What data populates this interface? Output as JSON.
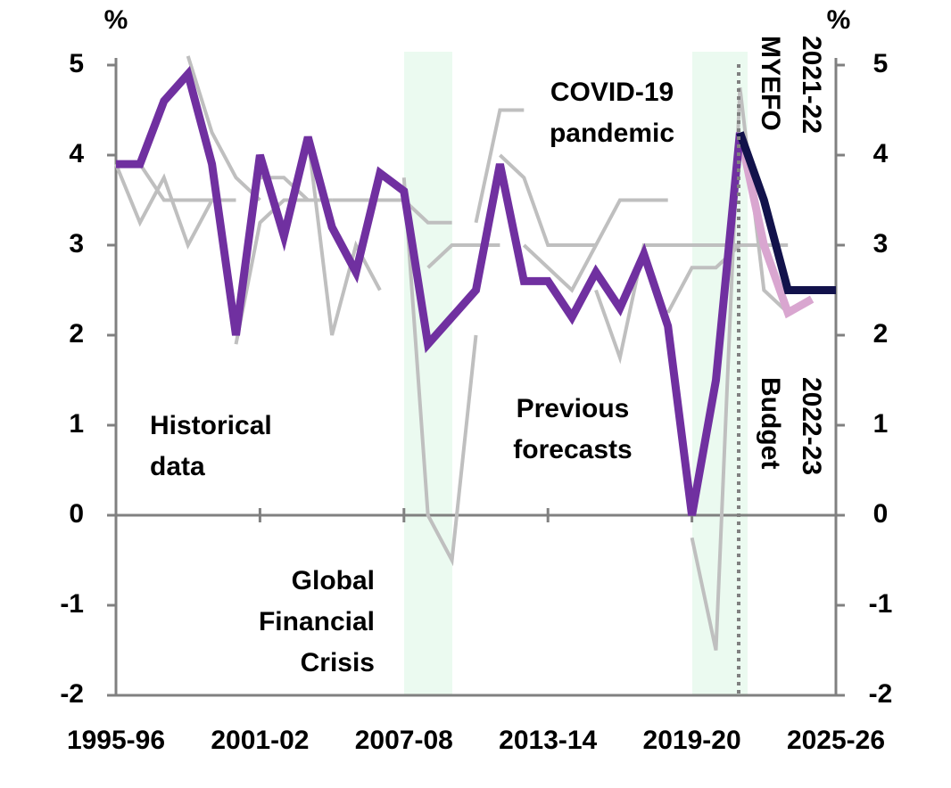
{
  "chart_data": {
    "type": "line",
    "y_unit": "%",
    "y2_unit": "%",
    "categories": [
      "1995-96",
      null,
      null,
      null,
      null,
      null,
      "2001-02",
      null,
      null,
      null,
      null,
      null,
      "2007-08",
      null,
      null,
      null,
      null,
      null,
      "2013-14",
      null,
      null,
      null,
      null,
      null,
      "2019-20",
      null,
      null,
      null,
      null,
      null,
      "2025-26"
    ],
    "ylim": [
      -2,
      5
    ],
    "yticks": [
      5,
      4,
      3,
      2,
      1,
      0,
      -1,
      -2
    ],
    "y2lim": [
      -2,
      5
    ],
    "y2ticks": [
      5,
      4,
      3,
      2,
      1,
      0,
      -1,
      -2
    ],
    "series": [
      {
        "color": "#bfbfbf",
        "values": [
          3.9,
          3.25,
          3.75,
          3.0,
          3.5,
          null,
          null,
          null,
          null,
          null,
          null,
          null,
          null,
          null,
          null,
          null,
          null,
          null,
          null,
          null,
          null,
          null,
          null,
          null,
          null,
          null,
          null,
          null,
          null,
          null,
          null
        ]
      },
      {
        "color": "#bfbfbf",
        "values": [
          null,
          3.9,
          3.5,
          3.5,
          3.5,
          3.5,
          null,
          null,
          null,
          null,
          null,
          null,
          null,
          null,
          null,
          null,
          null,
          null,
          null,
          null,
          null,
          null,
          null,
          null,
          null,
          null,
          null,
          null,
          null,
          null,
          null
        ]
      },
      {
        "color": "#bfbfbf",
        "values": [
          null,
          null,
          null,
          5.1,
          4.25,
          3.75,
          3.5,
          null,
          null,
          null,
          null,
          null,
          null,
          null,
          null,
          null,
          null,
          null,
          null,
          null,
          null,
          null,
          null,
          null,
          null,
          null,
          null,
          null,
          null,
          null,
          null
        ]
      },
      {
        "color": "#bfbfbf",
        "values": [
          null,
          null,
          null,
          null,
          null,
          1.9,
          3.25,
          3.5,
          3.5,
          null,
          null,
          null,
          null,
          null,
          null,
          null,
          null,
          null,
          null,
          null,
          null,
          null,
          null,
          null,
          null,
          null,
          null,
          null,
          null,
          null,
          null
        ]
      },
      {
        "color": "#bfbfbf",
        "values": [
          null,
          null,
          null,
          null,
          null,
          null,
          3.75,
          3.75,
          3.5,
          3.5,
          null,
          null,
          null,
          null,
          null,
          null,
          null,
          null,
          null,
          null,
          null,
          null,
          null,
          null,
          null,
          null,
          null,
          null,
          null,
          null,
          null
        ]
      },
      {
        "color": "#bfbfbf",
        "values": [
          null,
          null,
          null,
          null,
          null,
          null,
          null,
          null,
          4.2,
          2.0,
          3.0,
          2.5,
          null,
          null,
          null,
          null,
          null,
          null,
          null,
          null,
          null,
          null,
          null,
          null,
          null,
          null,
          null,
          null,
          null,
          null,
          null
        ]
      },
      {
        "color": "#bfbfbf",
        "values": [
          null,
          null,
          null,
          null,
          null,
          null,
          null,
          null,
          null,
          3.5,
          3.5,
          3.5,
          3.5,
          null,
          null,
          null,
          null,
          null,
          null,
          null,
          null,
          null,
          null,
          null,
          null,
          null,
          null,
          null,
          null,
          null,
          null
        ]
      },
      {
        "color": "#bfbfbf",
        "values": [
          null,
          null,
          null,
          null,
          null,
          null,
          null,
          null,
          null,
          null,
          null,
          null,
          3.75,
          0.0,
          -0.5,
          2.0,
          null,
          null,
          null,
          null,
          null,
          null,
          null,
          null,
          null,
          null,
          null,
          null,
          null,
          null,
          null
        ]
      },
      {
        "color": "#bfbfbf",
        "values": [
          null,
          null,
          null,
          null,
          null,
          null,
          null,
          null,
          null,
          null,
          null,
          null,
          3.5,
          3.25,
          3.25,
          null,
          null,
          null,
          null,
          null,
          null,
          null,
          null,
          null,
          null,
          null,
          null,
          null,
          null,
          null,
          null
        ]
      },
      {
        "color": "#bfbfbf",
        "values": [
          null,
          null,
          null,
          null,
          null,
          null,
          null,
          null,
          null,
          null,
          null,
          null,
          null,
          2.75,
          3.0,
          3.0,
          3.0,
          null,
          null,
          null,
          null,
          null,
          null,
          null,
          null,
          null,
          null,
          null,
          null,
          null,
          null
        ]
      },
      {
        "color": "#bfbfbf",
        "values": [
          null,
          null,
          null,
          null,
          null,
          null,
          null,
          null,
          null,
          null,
          null,
          null,
          null,
          null,
          null,
          3.25,
          4.5,
          4.5,
          null,
          null,
          null,
          null,
          null,
          null,
          null,
          null,
          null,
          null,
          null,
          null,
          null
        ]
      },
      {
        "color": "#bfbfbf",
        "values": [
          null,
          null,
          null,
          null,
          null,
          null,
          null,
          null,
          null,
          null,
          null,
          null,
          null,
          null,
          null,
          null,
          4.0,
          3.75,
          3.0,
          3.0,
          3.0,
          null,
          null,
          null,
          null,
          null,
          null,
          null,
          null,
          null,
          null
        ]
      },
      {
        "color": "#bfbfbf",
        "values": [
          null,
          null,
          null,
          null,
          null,
          null,
          null,
          null,
          null,
          null,
          null,
          null,
          null,
          null,
          null,
          null,
          null,
          3.0,
          2.75,
          2.5,
          3.0,
          3.5,
          3.5,
          3.5,
          null,
          null,
          null,
          null,
          null,
          null,
          null
        ]
      },
      {
        "color": "#bfbfbf",
        "values": [
          null,
          null,
          null,
          null,
          null,
          null,
          null,
          null,
          null,
          null,
          null,
          null,
          null,
          null,
          null,
          null,
          null,
          null,
          null,
          null,
          2.5,
          1.75,
          3.0,
          3.0,
          3.0,
          3.0,
          3.0,
          null,
          null,
          null,
          null
        ]
      },
      {
        "color": "#bfbfbf",
        "values": [
          null,
          null,
          null,
          null,
          null,
          null,
          null,
          null,
          null,
          null,
          null,
          null,
          null,
          null,
          null,
          null,
          null,
          null,
          null,
          null,
          null,
          null,
          null,
          2.25,
          2.75,
          2.75,
          3.0,
          3.0,
          3.0,
          null,
          null
        ]
      },
      {
        "color": "#bfbfbf",
        "values": [
          null,
          null,
          null,
          null,
          null,
          null,
          null,
          null,
          null,
          null,
          null,
          null,
          null,
          null,
          null,
          null,
          null,
          null,
          null,
          null,
          null,
          null,
          null,
          null,
          -0.25,
          -1.5,
          4.75,
          2.5,
          2.25,
          null,
          null
        ]
      },
      {
        "color": "#d9a6d0",
        "values": [
          null,
          null,
          null,
          null,
          null,
          null,
          null,
          null,
          null,
          null,
          null,
          null,
          null,
          null,
          null,
          null,
          null,
          null,
          null,
          null,
          null,
          null,
          null,
          null,
          null,
          null,
          4.25,
          3.0,
          2.25,
          2.4,
          null
        ]
      },
      {
        "color": "#7030a0",
        "values": [
          3.9,
          3.9,
          4.6,
          4.9,
          3.9,
          2.0,
          4.0,
          3.1,
          4.2,
          3.2,
          2.7,
          3.8,
          3.6,
          1.9,
          2.2,
          2.5,
          3.9,
          2.6,
          2.6,
          2.2,
          2.7,
          2.3,
          2.9,
          2.1,
          0.0,
          1.5,
          4.25,
          null,
          null,
          null,
          null
        ]
      },
      {
        "color": "#12124b",
        "values": [
          null,
          null,
          null,
          null,
          null,
          null,
          null,
          null,
          null,
          null,
          null,
          null,
          null,
          null,
          null,
          null,
          null,
          null,
          null,
          null,
          null,
          null,
          null,
          null,
          null,
          null,
          4.25,
          3.5,
          2.5,
          2.5,
          2.5
        ]
      }
    ],
    "annotations": [
      {
        "lines": [
          "COVID-19",
          "pandemic"
        ],
        "color": "#2dbd8a"
      },
      {
        "lines": [
          "Global",
          "Financial",
          "Crisis"
        ],
        "color": "#2dbd8a"
      },
      {
        "lines": [
          "Historical",
          "data"
        ],
        "color": "#7030a0"
      },
      {
        "lines": [
          "Previous",
          "forecasts"
        ],
        "color": "#bfbfbf"
      },
      {
        "lines": [
          "2022-23",
          "Budget"
        ],
        "color": "#12124b"
      },
      {
        "lines": [
          "2021-22",
          "MYEFO"
        ],
        "color": "#d9a6d0"
      }
    ]
  }
}
